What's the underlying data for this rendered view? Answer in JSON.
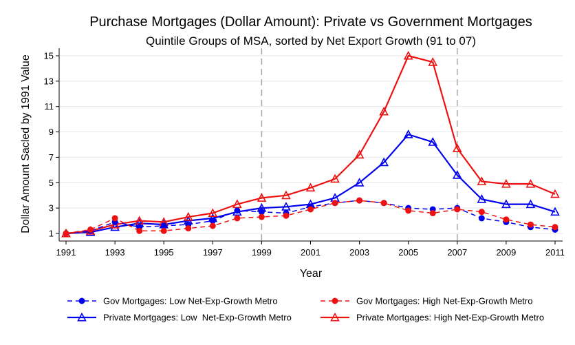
{
  "chart_data": {
    "type": "line",
    "title": "Purchase Mortgages (Dollar Amount): Private vs Government Mortgages",
    "subtitle": "Quintile Groups of MSA, sorted by Net Export Growth (91 to 07)",
    "xlabel": "Year",
    "ylabel": "Dollar Amount Sacled by 1991 Value",
    "x": [
      1991,
      1992,
      1993,
      1994,
      1995,
      1996,
      1997,
      1998,
      1999,
      2000,
      2001,
      2002,
      2003,
      2004,
      2005,
      2006,
      2007,
      2008,
      2009,
      2010,
      2011
    ],
    "xticks": [
      "1991",
      "1993",
      "1995",
      "1997",
      "1999",
      "2001",
      "2003",
      "2005",
      "2007",
      "2009",
      "2011"
    ],
    "yticks": [
      "1",
      "3",
      "5",
      "7",
      "9",
      "11",
      "13",
      "15"
    ],
    "xlim": [
      1991,
      2011
    ],
    "ylim": [
      1,
      15.5
    ],
    "reference_lines_x": [
      1999,
      2007
    ],
    "series": [
      {
        "name": "Gov Mortgages: Low Net-Exp-Growth Metro",
        "color": "#0000ee",
        "style": "dashed",
        "marker": "filled-circle",
        "values": [
          1.0,
          1.2,
          1.9,
          1.5,
          1.6,
          1.7,
          2.0,
          2.8,
          2.7,
          2.6,
          3.1,
          3.4,
          3.6,
          3.4,
          3.0,
          2.9,
          3.0,
          2.2,
          1.9,
          1.5,
          1.3
        ]
      },
      {
        "name": "Gov Mortgages: High Net-Exp-Growth Metro",
        "color": "#ee1111",
        "style": "dashed",
        "marker": "filled-circle",
        "values": [
          1.0,
          1.3,
          2.2,
          1.2,
          1.2,
          1.4,
          1.6,
          2.2,
          2.3,
          2.4,
          2.9,
          3.4,
          3.6,
          3.4,
          2.8,
          2.6,
          2.9,
          2.7,
          2.1,
          1.7,
          1.5
        ]
      },
      {
        "name": "Private Mortgages: Low  Net-Exp-Growth Metro",
        "color": "#0000ee",
        "style": "solid",
        "marker": "hollow-triangle",
        "values": [
          1.0,
          1.1,
          1.5,
          1.8,
          1.7,
          2.0,
          2.2,
          2.7,
          3.0,
          3.1,
          3.3,
          3.8,
          5.0,
          6.6,
          8.8,
          8.2,
          5.6,
          3.7,
          3.3,
          3.3,
          2.7
        ]
      },
      {
        "name": "Private Mortgages: High Net-Exp-Growth Metro",
        "color": "#ee1111",
        "style": "solid",
        "marker": "hollow-triangle",
        "values": [
          1.0,
          1.2,
          1.7,
          2.0,
          1.9,
          2.3,
          2.6,
          3.3,
          3.8,
          4.0,
          4.6,
          5.3,
          7.2,
          10.6,
          15.0,
          14.5,
          7.7,
          5.1,
          4.9,
          4.9,
          4.1
        ]
      }
    ]
  }
}
